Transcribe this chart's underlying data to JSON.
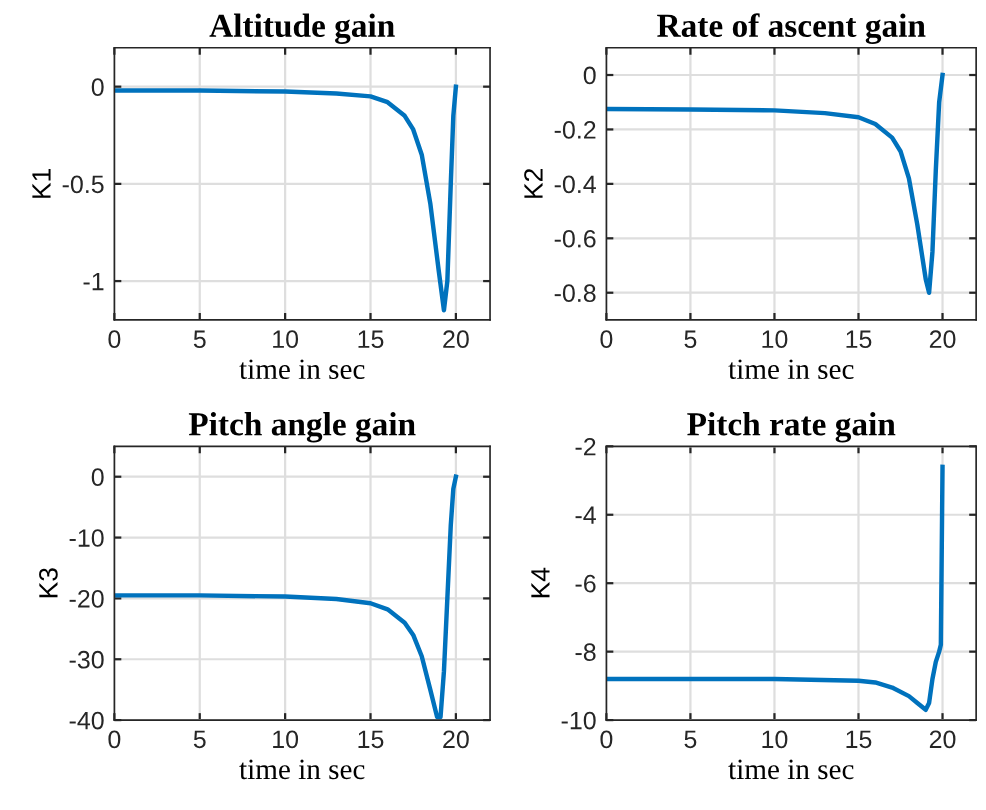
{
  "chart_data": [
    {
      "type": "line",
      "title": "Altitude gain",
      "xlabel": "time in sec",
      "ylabel": "K1",
      "xlim": [
        0,
        22
      ],
      "xticks": [
        0,
        5,
        10,
        15,
        20
      ],
      "ylim": [
        -1.2,
        0.2
      ],
      "yticks": [
        -1,
        -0.5,
        0
      ],
      "grid": true,
      "series": [
        {
          "color": "#0072bd",
          "x": [
            0,
            5,
            10,
            13,
            15,
            16,
            17,
            17.5,
            18,
            18.5,
            19,
            19.3,
            19.5,
            19.7,
            19.85,
            20
          ],
          "values": [
            -0.02,
            -0.02,
            -0.025,
            -0.035,
            -0.05,
            -0.08,
            -0.15,
            -0.22,
            -0.35,
            -0.6,
            -0.95,
            -1.15,
            -1.0,
            -0.5,
            -0.15,
            0
          ]
        }
      ]
    },
    {
      "type": "line",
      "title": "Rate of ascent gain",
      "xlabel": "time in sec",
      "ylabel": "K2",
      "xlim": [
        0,
        22
      ],
      "xticks": [
        0,
        5,
        10,
        15,
        20
      ],
      "ylim": [
        -0.9,
        0.1
      ],
      "yticks": [
        -0.8,
        -0.6,
        -0.4,
        -0.2,
        0
      ],
      "grid": true,
      "series": [
        {
          "color": "#0072bd",
          "x": [
            0,
            5,
            10,
            13,
            15,
            16,
            17,
            17.5,
            18,
            18.5,
            19,
            19.2,
            19.4,
            19.6,
            19.8,
            20
          ],
          "values": [
            -0.125,
            -0.127,
            -0.13,
            -0.14,
            -0.155,
            -0.18,
            -0.23,
            -0.28,
            -0.38,
            -0.55,
            -0.75,
            -0.8,
            -0.65,
            -0.35,
            -0.1,
            0
          ]
        }
      ]
    },
    {
      "type": "line",
      "title": "Pitch angle gain",
      "xlabel": "time in sec",
      "ylabel": "K3",
      "xlim": [
        0,
        22
      ],
      "xticks": [
        0,
        5,
        10,
        15,
        20
      ],
      "ylim": [
        -40,
        5
      ],
      "yticks": [
        -40,
        -30,
        -20,
        -10,
        0
      ],
      "grid": true,
      "series": [
        {
          "color": "#0072bd",
          "x": [
            0,
            5,
            10,
            13,
            15,
            16,
            17,
            17.5,
            18,
            18.5,
            18.9,
            19.1,
            19.3,
            19.5,
            19.7,
            19.85,
            20
          ],
          "values": [
            -19.5,
            -19.5,
            -19.7,
            -20.1,
            -20.8,
            -21.8,
            -24,
            -26,
            -29.5,
            -35,
            -39.5,
            -39.5,
            -32,
            -20,
            -8,
            -2,
            0
          ]
        }
      ]
    },
    {
      "type": "line",
      "title": "Pitch rate gain",
      "xlabel": "time in sec",
      "ylabel": "K4",
      "xlim": [
        0,
        22
      ],
      "xticks": [
        0,
        5,
        10,
        15,
        20
      ],
      "ylim": [
        -10,
        -2
      ],
      "yticks": [
        -10,
        -8,
        -6,
        -4,
        -2
      ],
      "grid": true,
      "series": [
        {
          "color": "#0072bd",
          "x": [
            0,
            5,
            10,
            15,
            16,
            17,
            18,
            18.5,
            19,
            19.2,
            19.4,
            19.6,
            19.8,
            19.9,
            20
          ],
          "values": [
            -8.8,
            -8.8,
            -8.8,
            -8.85,
            -8.9,
            -9.05,
            -9.3,
            -9.5,
            -9.7,
            -9.5,
            -8.8,
            -8.3,
            -8.0,
            -7.8,
            -2.6
          ]
        }
      ]
    }
  ]
}
